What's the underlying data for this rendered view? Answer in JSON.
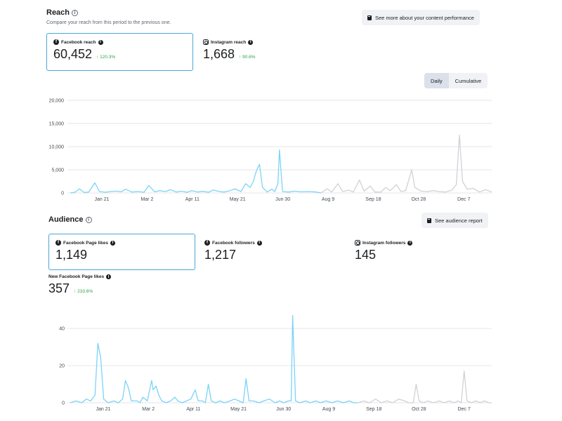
{
  "reach": {
    "title": "Reach",
    "subtitle": "Compare your reach from this period to the previous one.",
    "see_more_button": "See more about your content performance",
    "facebook": {
      "label": "Facebook reach",
      "value": "60,452",
      "delta": "120.3%"
    },
    "instagram": {
      "label": "Instagram reach",
      "value": "1,668",
      "delta": "90.6%"
    },
    "toggle": {
      "daily": "Daily",
      "cumulative": "Cumulative",
      "selected": "Daily"
    }
  },
  "audience": {
    "title": "Audience",
    "see_button": "See audience report",
    "page_likes": {
      "label": "Facebook Page likes",
      "value": "1,149"
    },
    "fb_followers": {
      "label": "Facebook followers",
      "value": "1,217"
    },
    "ig_followers": {
      "label": "Instagram followers",
      "value": "145"
    },
    "new_likes": {
      "label": "New Facebook Page likes",
      "value": "357",
      "delta": "233.6%"
    }
  },
  "colors": {
    "current_series": "#7cd3f7",
    "previous_series": "#d0d2d6",
    "grid": "#e4e6eb",
    "positive": "#31a24c",
    "selected_border": "#4aa7d9"
  },
  "icons": {
    "facebook": "facebook-icon",
    "instagram": "instagram-icon",
    "info": "info-icon",
    "report": "book-icon",
    "arrow_up": "arrow-up-icon"
  },
  "chart_data": [
    {
      "type": "line",
      "x_tick_labels": [
        "Jan 21",
        "Mar 2",
        "Apr 11",
        "May 21",
        "Jun 30",
        "Aug 9",
        "Sep 18",
        "Oct 28",
        "Dec 7"
      ],
      "y_tick_labels": [
        "0",
        "5,000",
        "10,000",
        "15,000",
        "20,000"
      ],
      "ylim": [
        0,
        20000
      ],
      "grid": true,
      "series": [
        {
          "points": [
            [
              0,
              0
            ],
            [
              3,
              150
            ],
            [
              6,
              900
            ],
            [
              9,
              100
            ],
            [
              12,
              200
            ],
            [
              16,
              2200
            ],
            [
              19,
              300
            ],
            [
              23,
              150
            ],
            [
              26,
              300
            ],
            [
              30,
              400
            ],
            [
              33,
              250
            ],
            [
              36,
              800
            ],
            [
              40,
              200
            ],
            [
              44,
              300
            ],
            [
              48,
              150
            ],
            [
              51,
              1600
            ],
            [
              55,
              250
            ],
            [
              58,
              500
            ],
            [
              62,
              300
            ],
            [
              65,
              700
            ],
            [
              69,
              200
            ],
            [
              72,
              400
            ],
            [
              76,
              150
            ],
            [
              79,
              500
            ],
            [
              83,
              200
            ],
            [
              86,
              350
            ],
            [
              90,
              150
            ],
            [
              93,
              650
            ],
            [
              97,
              300
            ],
            [
              100,
              200
            ],
            [
              104,
              500
            ],
            [
              107,
              900
            ],
            [
              111,
              300
            ],
            [
              114,
              2000
            ],
            [
              117,
              1200
            ],
            [
              119,
              2500
            ],
            [
              121,
              4800
            ],
            [
              123,
              6200
            ],
            [
              125,
              1200
            ],
            [
              128,
              200
            ],
            [
              131,
              800
            ],
            [
              133,
              300
            ],
            [
              135,
              2000
            ],
            [
              136,
              9300
            ],
            [
              138,
              300
            ],
            [
              142,
              200
            ],
            [
              146,
              400
            ],
            [
              150,
              250
            ],
            [
              155,
              300
            ],
            [
              160,
              200
            ],
            [
              163,
              0
            ]
          ]
        },
        {
          "points": [
            [
              163,
              0
            ],
            [
              167,
              900
            ],
            [
              170,
              200
            ],
            [
              174,
              2000
            ],
            [
              177,
              300
            ],
            [
              181,
              600
            ],
            [
              184,
              200
            ],
            [
              188,
              2800
            ],
            [
              191,
              400
            ],
            [
              195,
              1500
            ],
            [
              198,
              200
            ],
            [
              202,
              200
            ],
            [
              205,
              1200
            ],
            [
              208,
              500
            ],
            [
              212,
              1800
            ],
            [
              215,
              300
            ],
            [
              218,
              500
            ],
            [
              222,
              5000
            ],
            [
              224,
              1200
            ],
            [
              228,
              400
            ],
            [
              232,
              300
            ],
            [
              236,
              500
            ],
            [
              240,
              300
            ],
            [
              244,
              200
            ],
            [
              248,
              600
            ],
            [
              251,
              1800
            ],
            [
              253,
              12500
            ],
            [
              255,
              2500
            ],
            [
              258,
              800
            ],
            [
              262,
              1000
            ],
            [
              266,
              200
            ],
            [
              270,
              700
            ],
            [
              274,
              200
            ]
          ]
        }
      ]
    },
    {
      "type": "line",
      "x_tick_labels": [
        "Jan 21",
        "Mar 2",
        "Apr 11",
        "May 21",
        "Jun 30",
        "Aug 9",
        "Sep 18",
        "Oct 28",
        "Dec 7"
      ],
      "y_tick_labels": [
        "0",
        "20",
        "40"
      ],
      "ylim": [
        0,
        48
      ],
      "grid": true,
      "series": [
        {
          "points": [
            [
              0,
              0
            ],
            [
              4,
              1
            ],
            [
              8,
              0
            ],
            [
              11,
              2
            ],
            [
              14,
              1
            ],
            [
              17,
              4
            ],
            [
              19,
              32
            ],
            [
              21,
              24
            ],
            [
              23,
              2
            ],
            [
              26,
              0
            ],
            [
              30,
              1
            ],
            [
              33,
              0
            ],
            [
              36,
              2
            ],
            [
              38,
              12
            ],
            [
              40,
              8
            ],
            [
              42,
              1
            ],
            [
              46,
              1
            ],
            [
              48,
              0
            ],
            [
              50,
              3
            ],
            [
              53,
              1
            ],
            [
              56,
              12
            ],
            [
              57,
              7
            ],
            [
              59,
              9
            ],
            [
              61,
              4
            ],
            [
              63,
              1
            ],
            [
              66,
              0
            ],
            [
              69,
              1
            ],
            [
              72,
              3
            ],
            [
              74,
              1
            ],
            [
              77,
              0
            ],
            [
              80,
              1
            ],
            [
              83,
              2
            ],
            [
              86,
              7
            ],
            [
              88,
              1
            ],
            [
              91,
              1
            ],
            [
              93,
              0
            ],
            [
              95,
              10
            ],
            [
              97,
              1
            ],
            [
              100,
              0
            ],
            [
              103,
              1
            ],
            [
              106,
              0
            ],
            [
              110,
              1
            ],
            [
              113,
              2
            ],
            [
              116,
              1
            ],
            [
              119,
              0
            ],
            [
              121,
              13
            ],
            [
              123,
              1
            ],
            [
              126,
              1
            ],
            [
              130,
              0
            ],
            [
              133,
              1
            ],
            [
              137,
              2
            ],
            [
              141,
              0
            ],
            [
              144,
              1
            ],
            [
              147,
              0
            ],
            [
              150,
              1
            ],
            [
              152,
              1
            ],
            [
              153,
              47
            ],
            [
              155,
              1
            ],
            [
              158,
              0
            ],
            [
              162,
              1
            ],
            [
              165,
              0
            ],
            [
              169,
              1
            ],
            [
              172,
              0
            ],
            [
              176,
              1
            ],
            [
              180,
              0
            ],
            [
              184,
              1
            ],
            [
              188,
              0
            ],
            [
              192,
              1
            ],
            [
              195,
              0
            ],
            [
              198,
              0
            ]
          ]
        },
        {
          "points": [
            [
              198,
              0
            ],
            [
              202,
              1
            ],
            [
              206,
              0
            ],
            [
              210,
              2
            ],
            [
              214,
              0
            ],
            [
              218,
              1
            ],
            [
              222,
              0
            ],
            [
              226,
              2
            ],
            [
              230,
              1
            ],
            [
              233,
              0
            ],
            [
              236,
              0
            ],
            [
              238,
              10
            ],
            [
              240,
              1
            ],
            [
              243,
              0
            ],
            [
              246,
              1
            ],
            [
              250,
              0
            ],
            [
              254,
              1
            ],
            [
              257,
              0
            ],
            [
              261,
              1
            ],
            [
              264,
              0
            ],
            [
              267,
              1
            ],
            [
              269,
              0
            ],
            [
              271,
              17
            ],
            [
              273,
              1
            ],
            [
              276,
              0
            ],
            [
              279,
              1
            ],
            [
              282,
              0
            ],
            [
              285,
              1
            ],
            [
              288,
              0
            ],
            [
              290,
              0
            ]
          ]
        }
      ]
    }
  ]
}
